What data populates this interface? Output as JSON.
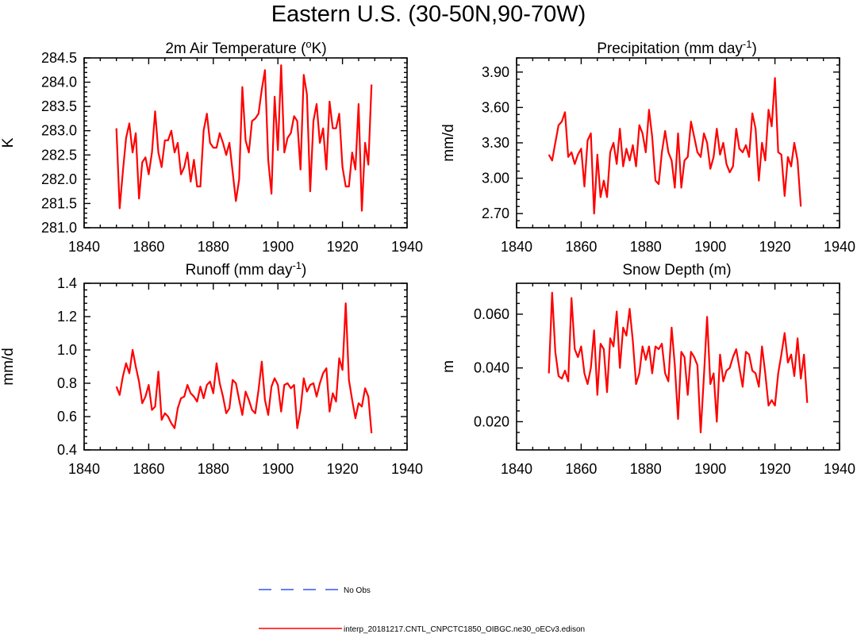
{
  "title": "Eastern U.S. (30-50N,90-70W)",
  "colors": {
    "model": "#ff0000",
    "obs": "#3355ee",
    "axis": "#000000"
  },
  "legend": {
    "obs_label": "No Obs",
    "model_label": "interp_20181217.CNTL_CNPCTC1850_OIBGC.ne30_oECv3.edison"
  },
  "chart_data": [
    {
      "type": "line",
      "title": "2m Air Temperature (°K)",
      "ylabel": "K",
      "xlim": [
        1840,
        1940
      ],
      "ylim": [
        281.0,
        284.5
      ],
      "xticks": [
        "1840",
        "1860",
        "1880",
        "1900",
        "1920",
        "1940"
      ],
      "yticks": [
        "281.0",
        "281.5",
        "282.0",
        "282.5",
        "283.0",
        "283.5",
        "284.0",
        "284.5"
      ],
      "series": [
        {
          "name": "interp_20181217.CNTL_CNPCTC1850_OIBGC.ne30_oECv3.edison",
          "x_start": 1850,
          "values": [
            283.05,
            281.4,
            282.15,
            282.85,
            283.15,
            282.55,
            282.95,
            281.6,
            282.35,
            282.45,
            282.1,
            282.55,
            283.4,
            282.55,
            282.25,
            282.8,
            282.8,
            283.0,
            282.55,
            282.75,
            282.1,
            282.25,
            282.55,
            281.95,
            282.4,
            281.85,
            281.85,
            283.0,
            283.35,
            282.75,
            282.65,
            282.65,
            282.95,
            282.75,
            282.5,
            282.75,
            282.15,
            281.55,
            282.0,
            283.9,
            282.8,
            282.55,
            283.2,
            283.25,
            283.35,
            283.85,
            284.25,
            282.4,
            281.7,
            283.7,
            282.6,
            284.35,
            282.55,
            282.85,
            282.95,
            283.3,
            283.2,
            282.2,
            284.15,
            283.75,
            281.75,
            283.2,
            283.55,
            282.75,
            283.05,
            282.2,
            283.6,
            283.05,
            283.05,
            283.35,
            282.25,
            281.85,
            281.85,
            282.55,
            282.2,
            283.55,
            281.35,
            282.75,
            282.3,
            283.95
          ]
        }
      ]
    },
    {
      "type": "line",
      "title": "Precipitation (mm day-1)",
      "ylabel": "mm/d",
      "xlim": [
        1840,
        1940
      ],
      "ylim": [
        2.58,
        4.02
      ],
      "xticks": [
        "1840",
        "1860",
        "1880",
        "1900",
        "1920",
        "1940"
      ],
      "yticks": [
        "2.70",
        "3.00",
        "3.30",
        "3.60",
        "3.90"
      ],
      "series": [
        {
          "name": "interp_20181217.CNTL_CNPCTC1850_OIBGC.ne30_oECv3.edison",
          "x_start": 1850,
          "values": [
            3.2,
            3.15,
            3.3,
            3.45,
            3.48,
            3.56,
            3.18,
            3.22,
            3.12,
            3.2,
            3.25,
            2.93,
            3.32,
            3.38,
            2.7,
            3.2,
            2.84,
            2.98,
            2.84,
            3.22,
            3.3,
            3.12,
            3.42,
            3.1,
            3.25,
            3.15,
            3.28,
            3.1,
            3.45,
            3.38,
            3.22,
            3.58,
            3.35,
            2.98,
            2.95,
            3.22,
            3.4,
            3.22,
            3.15,
            2.92,
            3.38,
            2.92,
            3.15,
            3.18,
            3.48,
            3.35,
            3.22,
            3.18,
            3.38,
            3.3,
            3.08,
            3.18,
            3.42,
            3.2,
            3.3,
            3.12,
            3.05,
            3.1,
            3.42,
            3.25,
            3.22,
            3.28,
            3.18,
            3.55,
            3.42,
            2.98,
            3.3,
            3.15,
            3.58,
            3.44,
            3.85,
            3.22,
            3.2,
            2.85,
            3.18,
            3.1,
            3.3,
            3.15,
            2.76
          ]
        }
      ]
    },
    {
      "type": "line",
      "title": "Runoff (mm day-1)",
      "ylabel": "mm/d",
      "xlim": [
        1840,
        1940
      ],
      "ylim": [
        0.4,
        1.4
      ],
      "xticks": [
        "1840",
        "1860",
        "1880",
        "1900",
        "1920",
        "1940"
      ],
      "yticks": [
        "0.4",
        "0.6",
        "0.8",
        "1.0",
        "1.2",
        "1.4"
      ],
      "series": [
        {
          "name": "interp_20181217.CNTL_CNPCTC1850_OIBGC.ne30_oECv3.edison",
          "x_start": 1850,
          "values": [
            0.78,
            0.73,
            0.84,
            0.92,
            0.86,
            1.0,
            0.9,
            0.81,
            0.68,
            0.72,
            0.79,
            0.64,
            0.66,
            0.87,
            0.58,
            0.62,
            0.6,
            0.56,
            0.53,
            0.65,
            0.71,
            0.72,
            0.79,
            0.74,
            0.72,
            0.69,
            0.78,
            0.71,
            0.79,
            0.81,
            0.74,
            0.92,
            0.8,
            0.72,
            0.62,
            0.65,
            0.82,
            0.8,
            0.7,
            0.61,
            0.75,
            0.7,
            0.64,
            0.62,
            0.76,
            0.93,
            0.7,
            0.61,
            0.78,
            0.83,
            0.79,
            0.63,
            0.79,
            0.8,
            0.77,
            0.79,
            0.53,
            0.64,
            0.83,
            0.75,
            0.79,
            0.8,
            0.72,
            0.8,
            0.86,
            0.89,
            0.63,
            0.74,
            0.69,
            0.95,
            0.88,
            1.28,
            0.82,
            0.7,
            0.59,
            0.68,
            0.66,
            0.77,
            0.72,
            0.5
          ]
        }
      ]
    },
    {
      "type": "line",
      "title": "Snow Depth (m)",
      "ylabel": "m",
      "xlim": [
        1840,
        1940
      ],
      "ylim": [
        0.0095,
        0.0715
      ],
      "xticks": [
        "1840",
        "1860",
        "1880",
        "1900",
        "1920",
        "1940"
      ],
      "yticks": [
        "0.020",
        "0.040",
        "0.060"
      ],
      "series": [
        {
          "name": "interp_20181217.CNTL_CNPCTC1850_OIBGC.ne30_oECv3.edison",
          "x_start": 1850,
          "values": [
            0.038,
            0.068,
            0.046,
            0.037,
            0.036,
            0.039,
            0.035,
            0.066,
            0.047,
            0.044,
            0.048,
            0.038,
            0.034,
            0.04,
            0.054,
            0.03,
            0.049,
            0.047,
            0.031,
            0.051,
            0.048,
            0.061,
            0.04,
            0.055,
            0.052,
            0.062,
            0.05,
            0.034,
            0.038,
            0.048,
            0.043,
            0.048,
            0.038,
            0.048,
            0.047,
            0.049,
            0.038,
            0.035,
            0.055,
            0.041,
            0.021,
            0.046,
            0.044,
            0.03,
            0.046,
            0.044,
            0.041,
            0.016,
            0.037,
            0.059,
            0.034,
            0.038,
            0.02,
            0.045,
            0.035,
            0.039,
            0.04,
            0.044,
            0.047,
            0.04,
            0.033,
            0.046,
            0.045,
            0.039,
            0.038,
            0.033,
            0.048,
            0.038,
            0.026,
            0.028,
            0.026,
            0.038,
            0.045,
            0.053,
            0.042,
            0.045,
            0.037,
            0.051,
            0.036,
            0.045,
            0.027
          ]
        }
      ]
    }
  ]
}
